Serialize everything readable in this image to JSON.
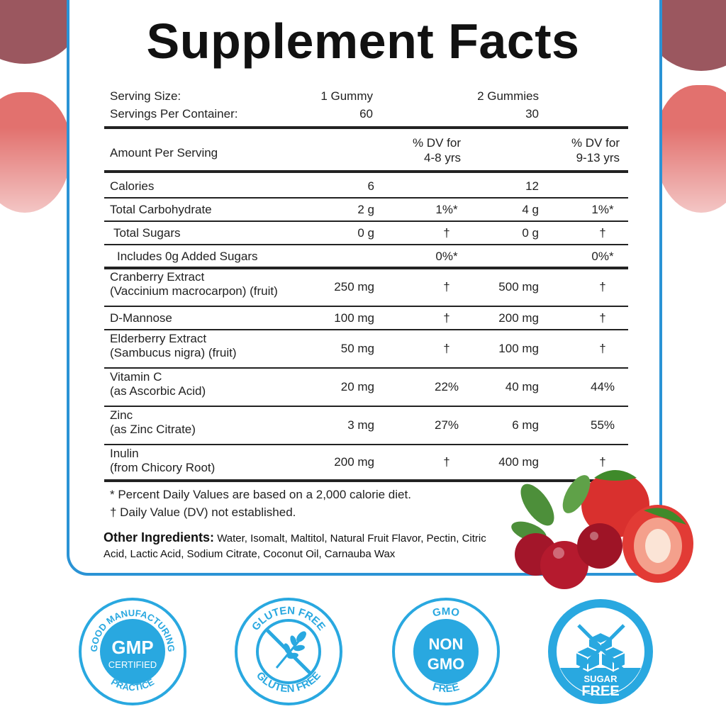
{
  "title": "Supplement Facts",
  "serving": {
    "size_label": "Serving Size:",
    "size_col1": "1 Gummy",
    "size_col2": "2 Gummies",
    "per_container_label": "Servings Per Container:",
    "per_container_col1": "60",
    "per_container_col2": "30"
  },
  "header": {
    "amount_label": "Amount Per Serving",
    "dv1_line1": "% DV for",
    "dv1_line2": "4-8 yrs",
    "dv2_line1": "% DV for",
    "dv2_line2": "9-13 yrs"
  },
  "rows": [
    {
      "name1": "Calories",
      "name2": "",
      "amt1": "6",
      "dv1": "",
      "amt2": "12",
      "dv2": ""
    },
    {
      "name1": "Total Carbohydrate",
      "name2": "",
      "amt1": "2 g",
      "dv1": "1%*",
      "amt2": "4 g",
      "dv2": "1%*"
    },
    {
      "name1": "Total Sugars",
      "name2": "",
      "amt1": "0 g",
      "dv1": "†",
      "amt2": "0 g",
      "dv2": "†"
    },
    {
      "name1": "Includes 0g Added Sugars",
      "name2": "",
      "amt1": "",
      "dv1": "0%*",
      "amt2": "",
      "dv2": "0%*"
    },
    {
      "name1": "Cranberry Extract",
      "name2": "(Vaccinium macrocarpon) (fruit)",
      "amt1": "250 mg",
      "dv1": "†",
      "amt2": "500 mg",
      "dv2": "†"
    },
    {
      "name1": "D-Mannose",
      "name2": "",
      "amt1": "100 mg",
      "dv1": "†",
      "amt2": "200 mg",
      "dv2": "†"
    },
    {
      "name1": "Elderberry Extract",
      "name2": "(Sambucus nigra) (fruit)",
      "amt1": "50 mg",
      "dv1": "†",
      "amt2": "100 mg",
      "dv2": "†"
    },
    {
      "name1": "Vitamin C",
      "name2": "(as Ascorbic Acid)",
      "amt1": "20 mg",
      "dv1": "22%",
      "amt2": "40 mg",
      "dv2": "44%"
    },
    {
      "name1": "Zinc",
      "name2": "(as Zinc Citrate)",
      "amt1": "3 mg",
      "dv1": "27%",
      "amt2": "6 mg",
      "dv2": "55%"
    },
    {
      "name1": "Inulin",
      "name2": "(from Chicory Root)",
      "amt1": "200 mg",
      "dv1": "†",
      "amt2": "400 mg",
      "dv2": "†"
    }
  ],
  "footnotes": {
    "percent": "* Percent Daily Values are based on a 2,000 calorie diet.",
    "dagger": "† Daily Value (DV) not established."
  },
  "ingredients": {
    "label": "Other Ingredients:",
    "text": "Water, Isomalt, Maltitol, Natural Fruit Flavor, Pectin, Citric Acid, Lactic Acid, Sodium Citrate, Coconut Oil, Carnauba Wax"
  },
  "badges": {
    "gmp": {
      "top": "GOOD MANUFACTURING",
      "center": "GMP",
      "sub": "CERTIFIED",
      "bottom": "PRACTICE"
    },
    "gluten": {
      "top": "GLUTEN FREE",
      "bottom": "GLUTEN FREE"
    },
    "nongmo": {
      "top": "GMO",
      "line1": "NON",
      "line2": "GMO",
      "bottom": "FREE"
    },
    "sugar": {
      "line1": "SUGAR",
      "line2": "FREE"
    }
  },
  "colors": {
    "accent": "#2a93d5",
    "badge_blue": "#29a8e0",
    "text": "#222222"
  }
}
